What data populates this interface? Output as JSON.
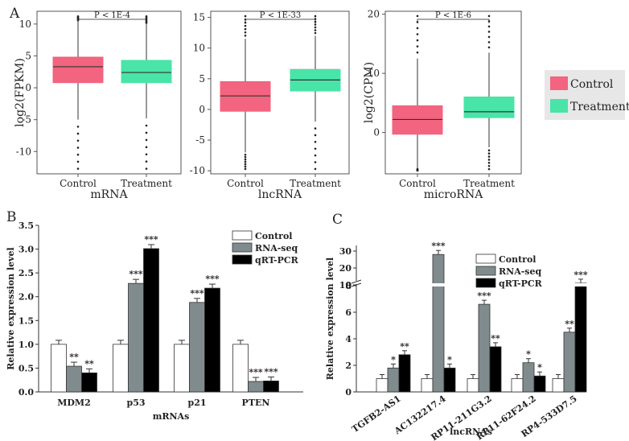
{
  "panel_labels": {
    "a": "A",
    "b": "B",
    "c": "C"
  },
  "legend_a": {
    "control": "Control",
    "treatment": "Treatment"
  },
  "colors": {
    "control": "#f2647f",
    "treatment": "#49e4a8",
    "rnaseq": "#808b8e",
    "qrtpcr": "#000000",
    "ctrl_bar": "#ffffff"
  },
  "chart_data": [
    {
      "type": "box",
      "id": "mrna",
      "title": "P < 1E-4",
      "xlabel": "mRNA",
      "ylabel": "log2(FPKM)",
      "ylim": [
        -13.5,
        12
      ],
      "yticks": [
        "10",
        "5",
        "0",
        "-5",
        "-10"
      ],
      "categories": [
        "Control",
        "Treatment"
      ],
      "boxes": [
        {
          "q1": 0.8,
          "median": 3.3,
          "q3": 4.8,
          "whisker_low": -5.0,
          "whisker_high": 10.5
        },
        {
          "q1": 0.8,
          "median": 2.4,
          "q3": 4.3,
          "whisker_low": -4.8,
          "whisker_high": 10.0
        }
      ]
    },
    {
      "type": "box",
      "id": "lncrna",
      "title": "P < 1E-33",
      "xlabel": "lncRNA",
      "ylabel": "",
      "ylim": [
        -10.5,
        16
      ],
      "yticks": [
        "15",
        "10",
        "5",
        "0",
        "-5",
        "-10"
      ],
      "categories": [
        "Control",
        "Treatment"
      ],
      "boxes": [
        {
          "q1": -0.3,
          "median": 2.2,
          "q3": 4.5,
          "whisker_low": -7.0,
          "whisker_high": 11.5
        },
        {
          "q1": 3.0,
          "median": 4.8,
          "q3": 6.5,
          "whisker_low": -2.0,
          "whisker_high": 12.0
        }
      ]
    },
    {
      "type": "box",
      "id": "microrna",
      "title": "P < 1E-6",
      "xlabel": "microRNA",
      "ylabel": "log2(CPM)",
      "ylim": [
        -7,
        20.5
      ],
      "yticks": [
        "20",
        "10",
        "0"
      ],
      "categories": [
        "Control",
        "Treatment"
      ],
      "boxes": [
        {
          "q1": -0.3,
          "median": 2.2,
          "q3": 4.5,
          "whisker_low": -6.5,
          "whisker_high": 12.5
        },
        {
          "q1": 2.5,
          "median": 3.5,
          "q3": 6.0,
          "whisker_low": -2.5,
          "whisker_high": 13.5
        }
      ]
    },
    {
      "type": "bar",
      "id": "mrnas_bar",
      "xlabel": "mRNAs",
      "ylabel": "Relative expression level",
      "ylim": [
        0,
        3.5
      ],
      "yticks": [
        "0.0",
        "0.5",
        "1.0",
        "1.5",
        "2.0",
        "2.5",
        "3.0",
        "3.5"
      ],
      "categories": [
        "MDM2",
        "p53",
        "p21",
        "PTEN"
      ],
      "series": [
        {
          "name": "Control",
          "values": [
            1.0,
            1.0,
            1.0,
            1.0
          ]
        },
        {
          "name": "RNA-seq",
          "values": [
            0.54,
            2.28,
            1.88,
            0.22
          ]
        },
        {
          "name": "qRT-PCR",
          "values": [
            0.4,
            3.01,
            2.18,
            0.23
          ]
        }
      ],
      "significance": [
        [
          "",
          "**",
          "**"
        ],
        [
          "",
          "***",
          "***"
        ],
        [
          "",
          "***",
          "***"
        ],
        [
          "",
          "***",
          "***"
        ]
      ]
    },
    {
      "type": "bar",
      "id": "lncrnas_bar",
      "xlabel": "lncRNAs",
      "ylabel": "Relative expression level",
      "ylim": [
        0,
        35
      ],
      "axis_break": [
        9,
        11
      ],
      "yticks": [
        "0",
        "2",
        "4",
        "6",
        "8",
        "10",
        "20",
        "30"
      ],
      "categories": [
        "TGFB2-AS1",
        "AC132217.4",
        "RP11-211G3.2",
        "RP11-62F24.2",
        "RP4-533D7.5"
      ],
      "series": [
        {
          "name": "Control",
          "values": [
            1.0,
            1.0,
            1.0,
            1.0,
            1.0
          ]
        },
        {
          "name": "RNA-seq",
          "values": [
            1.8,
            28.0,
            6.6,
            2.2,
            4.5
          ]
        },
        {
          "name": "qRT-PCR",
          "values": [
            2.8,
            1.8,
            3.4,
            1.2,
            11.0
          ]
        }
      ],
      "significance": [
        [
          "",
          "*",
          "**"
        ],
        [
          "",
          "***",
          "*"
        ],
        [
          "",
          "***",
          "**"
        ],
        [
          "",
          "*",
          "*"
        ],
        [
          "",
          "**",
          "***"
        ]
      ]
    }
  ]
}
